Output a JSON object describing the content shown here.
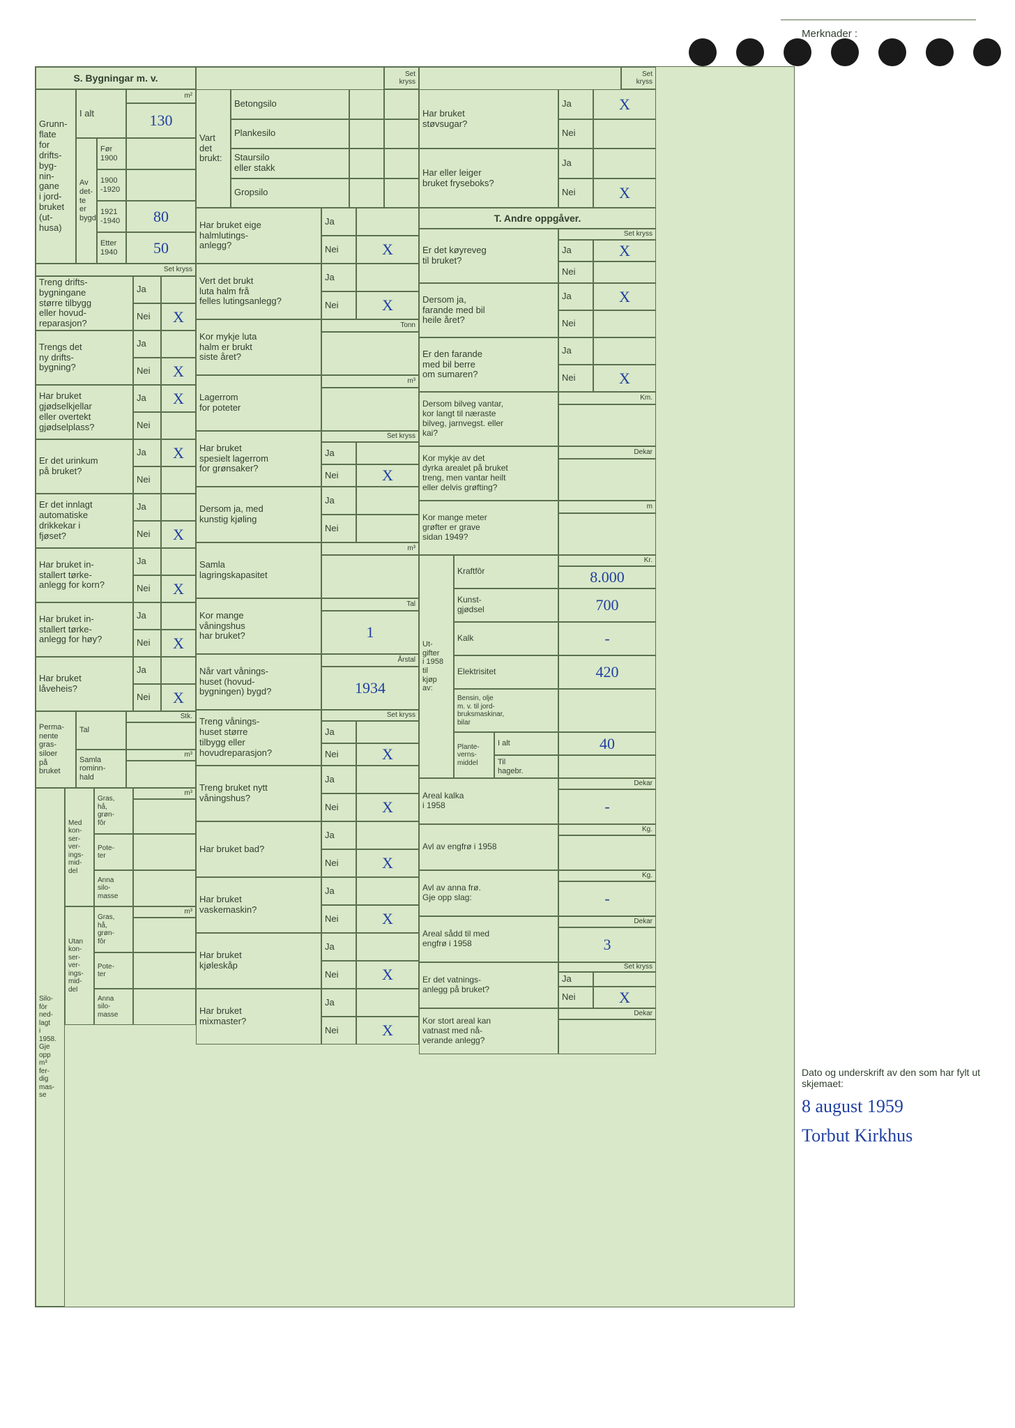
{
  "colors": {
    "page_bg": "#d9e8c8",
    "border": "#5a7050",
    "text": "#304030",
    "handwriting": "#2040a0",
    "outer_bg": "#ffffff",
    "hole": "#1a1a1a"
  },
  "fonts": {
    "printed_size_pt": 10,
    "hand_size_pt": 17
  },
  "section_s_title": "S. Bygningar m. v.",
  "set_kryss": "Set kryss",
  "merknader_label": "Merknader :",
  "section_t_title": "T. Andre oppgåver.",
  "sig_label": "Dato og underskrift av den som har fylt ut skjemaet:",
  "sig_date": "8 august 1959",
  "sig_name": "Torbut Kirkhus",
  "grunnflate": {
    "lead": "Grunn-\nflate\nfor\ndrifts-\nbyg-\nnin-\ngane\ni jord-\nbruket\n(ut-\nhusa)",
    "ialt_label": "I alt",
    "ialt_value": "130",
    "unit": "m²",
    "avdette": "Av\ndet-\nte\ner\nbygd",
    "rows": [
      {
        "label": "Før\n1900",
        "value": ""
      },
      {
        "label": "1900\n-1920",
        "value": ""
      },
      {
        "label": "1921\n-1940",
        "value": "80"
      },
      {
        "label": "Etter\n1940",
        "value": "50"
      }
    ]
  },
  "leftQ": [
    {
      "q": "Treng drifts-\nbygningane\nstørre tilbygg\neller hovud-\nreparasjon?",
      "ja": "",
      "nei": "X"
    },
    {
      "q": "Trengs det\nny drifts-\nbygning?",
      "ja": "",
      "nei": "X"
    },
    {
      "q": "Har bruket\ngjødselkjellar\neller overtekt\ngjødselplass?",
      "ja": "X",
      "nei": ""
    },
    {
      "q": "Er det urinkum\npå bruket?",
      "ja": "X",
      "nei": ""
    },
    {
      "q": "Er det innlagt\nautomatiske\ndrikkekar i\nfjøset?",
      "ja": "",
      "nei": "X"
    },
    {
      "q": "Har bruket in-\nstallert tørke-\nanlegg for korn?",
      "ja": "",
      "nei": "X"
    },
    {
      "q": "Har bruket in-\nstallert tørke-\nanlegg for høy?",
      "ja": "",
      "nei": "X"
    },
    {
      "q": "Har bruket\nlåveheis?",
      "ja": "",
      "nei": "X"
    }
  ],
  "perm_silo": {
    "lead": "Perma-\nnente\ngras-\nsiloer\npå\nbruket",
    "rows": [
      {
        "label": "Tal",
        "unit": "Stk.",
        "value": ""
      },
      {
        "label": "Samla\nrominn-\nhald",
        "unit": "m³",
        "value": ""
      }
    ]
  },
  "silofor": {
    "lead": "Silo-\nfòr\nned-\nlagt\ni\n1958.\nGje\nopp\nm³\nfer-\ndig\nmas-\nse",
    "groups": [
      {
        "label": "Med\nkon-\nser-\nver-\nings-\nmid-\ndel",
        "rows": [
          {
            "label": "Gras,\nhå,\ngrøn-\nfôr",
            "unit": "m³",
            "value": ""
          },
          {
            "label": "Pote-\nter",
            "value": ""
          },
          {
            "label": "Anna\nsilo-\nmasse",
            "value": ""
          }
        ]
      },
      {
        "label": "Utan\nkon-\nser-\nver-\nings-\nmid-\ndel",
        "rows": [
          {
            "label": "Gras,\nhå,\ngrøn-\nfôr",
            "unit": "m³",
            "value": ""
          },
          {
            "label": "Pote-\nter",
            "value": ""
          },
          {
            "label": "Anna\nsilo-\nmasse",
            "value": ""
          }
        ]
      }
    ]
  },
  "middle_top": {
    "lead": "Vart\ndet\nbrukt:",
    "rows": [
      {
        "label": "Betongsilo",
        "value": ""
      },
      {
        "label": "Plankesilo",
        "value": ""
      },
      {
        "label": "Staursilo\neller stakk",
        "value": ""
      },
      {
        "label": "Gropsilo",
        "value": ""
      }
    ]
  },
  "middleQ": [
    {
      "q": "Har bruket eige\nhalmlutings-\nanlegg?",
      "ja": "",
      "nei": "X",
      "unit": ""
    },
    {
      "q": "Vert det brukt\nluta halm frå\nfelles lutingsanlegg?",
      "ja": "",
      "nei": "X",
      "unit": ""
    },
    {
      "q": "Kor mykje luta\nhalm er brukt\nsiste året?",
      "value": "",
      "unit": "Tonn"
    },
    {
      "q": "Lagerrom\nfor poteter",
      "value": "",
      "unit": "m³"
    },
    {
      "q": "Har bruket\nspesielt lagerrom\nfor grønsaker?",
      "ja": "",
      "nei": "X",
      "unit": "Set kryss"
    },
    {
      "q": "Dersom ja, med\nkunstig kjøling",
      "ja": "",
      "nei": "",
      "unit": ""
    },
    {
      "q": "Samla\nlagringskapasitet",
      "value": "",
      "unit": "m³"
    },
    {
      "q": "Kor mange\nvåningshus\nhar bruket?",
      "value": "1",
      "unit": "Tal"
    },
    {
      "q": "Når vart vånings-\nhuset (hovud-\nbygningen) bygd?",
      "value": "1934",
      "unit": "Årstal"
    },
    {
      "q": "Treng vånings-\nhuset større\ntilbygg eller\nhovudreparasjon?",
      "ja": "",
      "nei": "X",
      "unit": "Set kryss"
    },
    {
      "q": "Treng bruket nytt\nvåningshus?",
      "ja": "",
      "nei": "X",
      "unit": ""
    },
    {
      "q": "Har bruket bad?",
      "ja": "",
      "nei": "X",
      "unit": ""
    },
    {
      "q": "Har bruket\nvaskemaskin?",
      "ja": "",
      "nei": "X",
      "unit": ""
    },
    {
      "q": "Har bruket\nkjøleskåp",
      "ja": "",
      "nei": "X",
      "unit": ""
    },
    {
      "q": "Har bruket\nmixmaster?",
      "ja": "",
      "nei": "X",
      "unit": ""
    }
  ],
  "right_top": [
    {
      "q": "Har bruket\nstøvsugar?",
      "ja": "X",
      "nei": ""
    },
    {
      "q": "Har eller leiger\nbruket fryseboks?",
      "ja": "",
      "nei": "X"
    }
  ],
  "rightQ": [
    {
      "q": "Er det køyreveg\ntil bruket?",
      "ja": "X",
      "nei": "",
      "unit": "Set kryss"
    },
    {
      "q": "Dersom ja,\nfarande med bil\nheile året?",
      "ja": "X",
      "nei": "",
      "unit": ""
    },
    {
      "q": "Er den farande\nmed bil berre\nom sumaren?",
      "ja": "",
      "nei": "X",
      "unit": ""
    },
    {
      "q": "Dersom bilveg vantar,\nkor langt til næraste\nbilveg, jarnvegst. eller\nkai?",
      "value": "",
      "unit": "Km."
    },
    {
      "q": "Kor mykje av det\ndyrka arealet på bruket\ntreng, men vantar heilt\neller delvis grøfting?",
      "value": "",
      "unit": "Dekar"
    },
    {
      "q": "Kor mange meter\ngrøfter er grave\nsidan 1949?",
      "value": "",
      "unit": "m"
    }
  ],
  "utgifter": {
    "lead": "Ut-\ngifter\ni 1958\ntil\nkjøp\nav:",
    "rows": [
      {
        "label": "Kraftfôr",
        "value": "8.000",
        "unit": "Kr."
      },
      {
        "label": "Kunst-\ngjødsel",
        "value": "700",
        "unit": ""
      },
      {
        "label": "Kalk",
        "value": "-",
        "unit": ""
      },
      {
        "label": "Elektrisitet",
        "value": "420",
        "unit": ""
      },
      {
        "label": "Bensin, olje\nm. v. til jord-\nbruksmaskinar,\nbilar",
        "value": "",
        "unit": ""
      }
    ],
    "plante": {
      "lead": "Plante-\nverns-\nmiddel",
      "rows": [
        {
          "label": "I alt",
          "value": "40"
        },
        {
          "label": "Til\nhagebr.",
          "value": ""
        }
      ]
    }
  },
  "right_bottom": [
    {
      "q": "Areal kalka\ni 1958",
      "value": "-",
      "unit": "Dekar"
    },
    {
      "q": "Avl av engfrø i 1958",
      "value": "",
      "unit": "Kg."
    },
    {
      "q": "Avl av anna frø.\nGje opp slag:",
      "value": "-",
      "unit": "Kg."
    },
    {
      "q": "Areal sådd til med\nengfrø i 1958",
      "value": "3",
      "unit": "Dekar"
    },
    {
      "q": "Er det vatnings-\nanlegg på bruket?",
      "ja": "",
      "nei": "X",
      "unit": "Set kryss"
    },
    {
      "q": "Kor stort areal kan\nvatnast med nå-\nverande anlegg?",
      "value": "",
      "unit": "Dekar"
    }
  ],
  "ja": "Ja",
  "nei": "Nei"
}
